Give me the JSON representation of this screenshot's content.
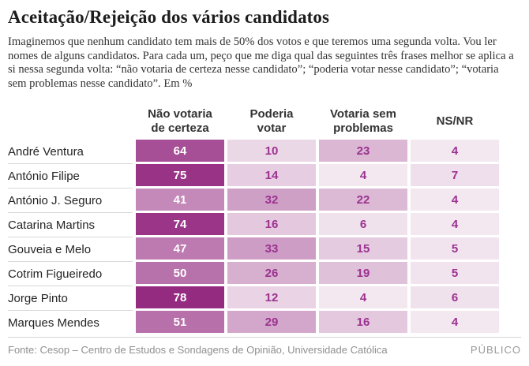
{
  "header": {
    "title": "Aceitação/Rejeição dos vários candidatos",
    "subtitle": "Imaginemos que nenhum candidato tem mais de 50% dos votos e que teremos uma segunda volta. Vou ler nomes de alguns candidatos. Para cada um, peço que me diga qual das seguintes três frases melhor se aplica a si nessa segunda volta: “não votaria de certeza nesse candidato”; “poderia votar nesse candidato”; “votaria sem problemas nesse candidato”. Em %"
  },
  "footer": {
    "source": "Fonte: Cesop – Centro de Estudos e Sondagens de Opinião, Universidade Católica",
    "brand": "PÚBLICO"
  },
  "chart_data": {
    "type": "heatmap",
    "title": "Aceitação/Rejeição dos vários candidatos",
    "unit": "%",
    "columns": [
      {
        "id": "nao-votaria-de-certeza",
        "lines": [
          "Não votaria",
          "de certeza"
        ]
      },
      {
        "id": "poderia-votar",
        "lines": [
          "Poderia",
          "votar"
        ]
      },
      {
        "id": "votaria-sem-problemas",
        "lines": [
          "Votaria sem",
          "problemas"
        ]
      },
      {
        "id": "ns-nr",
        "lines": [
          "NS/NR"
        ]
      }
    ],
    "rows": [
      {
        "candidate": "André Ventura",
        "values": [
          64,
          10,
          23,
          4
        ]
      },
      {
        "candidate": "António Filipe",
        "values": [
          75,
          14,
          4,
          7
        ]
      },
      {
        "candidate": "António J. Seguro",
        "values": [
          41,
          32,
          22,
          4
        ]
      },
      {
        "candidate": "Catarina Martins",
        "values": [
          74,
          16,
          6,
          4
        ]
      },
      {
        "candidate": "Gouveia e Melo",
        "values": [
          47,
          33,
          15,
          5
        ]
      },
      {
        "candidate": "Cotrim Figueiredo",
        "values": [
          50,
          26,
          19,
          5
        ]
      },
      {
        "candidate": "Jorge Pinto",
        "values": [
          78,
          12,
          4,
          6
        ]
      },
      {
        "candidate": "Marques Mendes",
        "values": [
          51,
          29,
          16,
          4
        ]
      }
    ],
    "color_scale": {
      "min_value": 0,
      "max_value": 80,
      "min_color": "#f8f1f6",
      "max_color": "#92267e",
      "white_text_threshold": 40,
      "value_text_on_dark": "#ffffff",
      "value_text_on_light": "#9c3190"
    }
  }
}
